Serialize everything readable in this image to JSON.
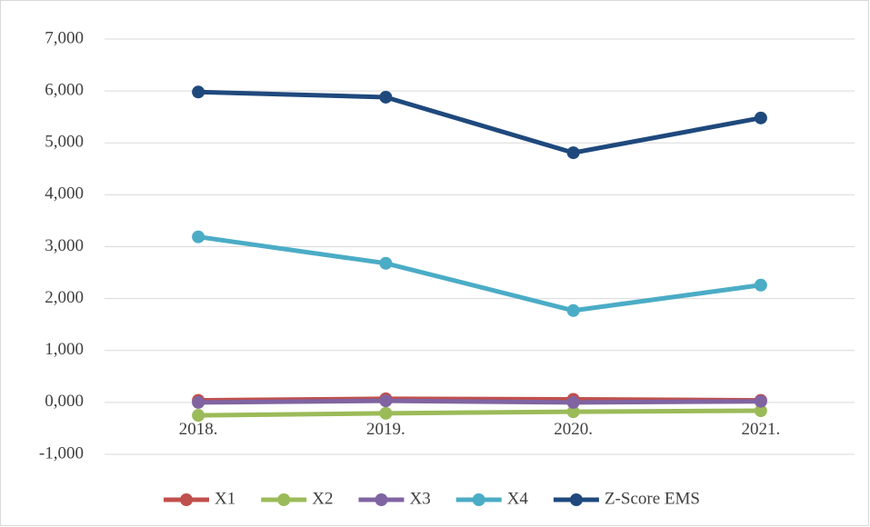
{
  "chart_data": {
    "type": "line",
    "categories": [
      "2018.",
      "2019.",
      "2020.",
      "2021."
    ],
    "series": [
      {
        "name": "X1",
        "color": "#c0504d",
        "values": [
          0.04,
          0.07,
          0.06,
          0.04
        ]
      },
      {
        "name": "X2",
        "color": "#9bbb59",
        "values": [
          -0.25,
          -0.21,
          -0.18,
          -0.16
        ]
      },
      {
        "name": "X3",
        "color": "#8064a2",
        "values": [
          0.0,
          0.03,
          0.0,
          0.02
        ]
      },
      {
        "name": "X4",
        "color": "#4bacc6",
        "values": [
          3.19,
          2.68,
          1.77,
          2.26
        ]
      },
      {
        "name": "Z-Score EMS",
        "color": "#1f497d",
        "values": [
          5.98,
          5.88,
          4.81,
          5.48
        ]
      }
    ],
    "ylim": [
      -1,
      7
    ],
    "yticks": [
      {
        "value": -1,
        "label": "-1,000"
      },
      {
        "value": 0,
        "label": "0,000"
      },
      {
        "value": 1,
        "label": "1,000"
      },
      {
        "value": 2,
        "label": "2,000"
      },
      {
        "value": 3,
        "label": "3,000"
      },
      {
        "value": 4,
        "label": "4,000"
      },
      {
        "value": 5,
        "label": "5,000"
      },
      {
        "value": 6,
        "label": "6,000"
      },
      {
        "value": 7,
        "label": "7,000"
      }
    ],
    "grid": true,
    "legend": "bottom"
  }
}
